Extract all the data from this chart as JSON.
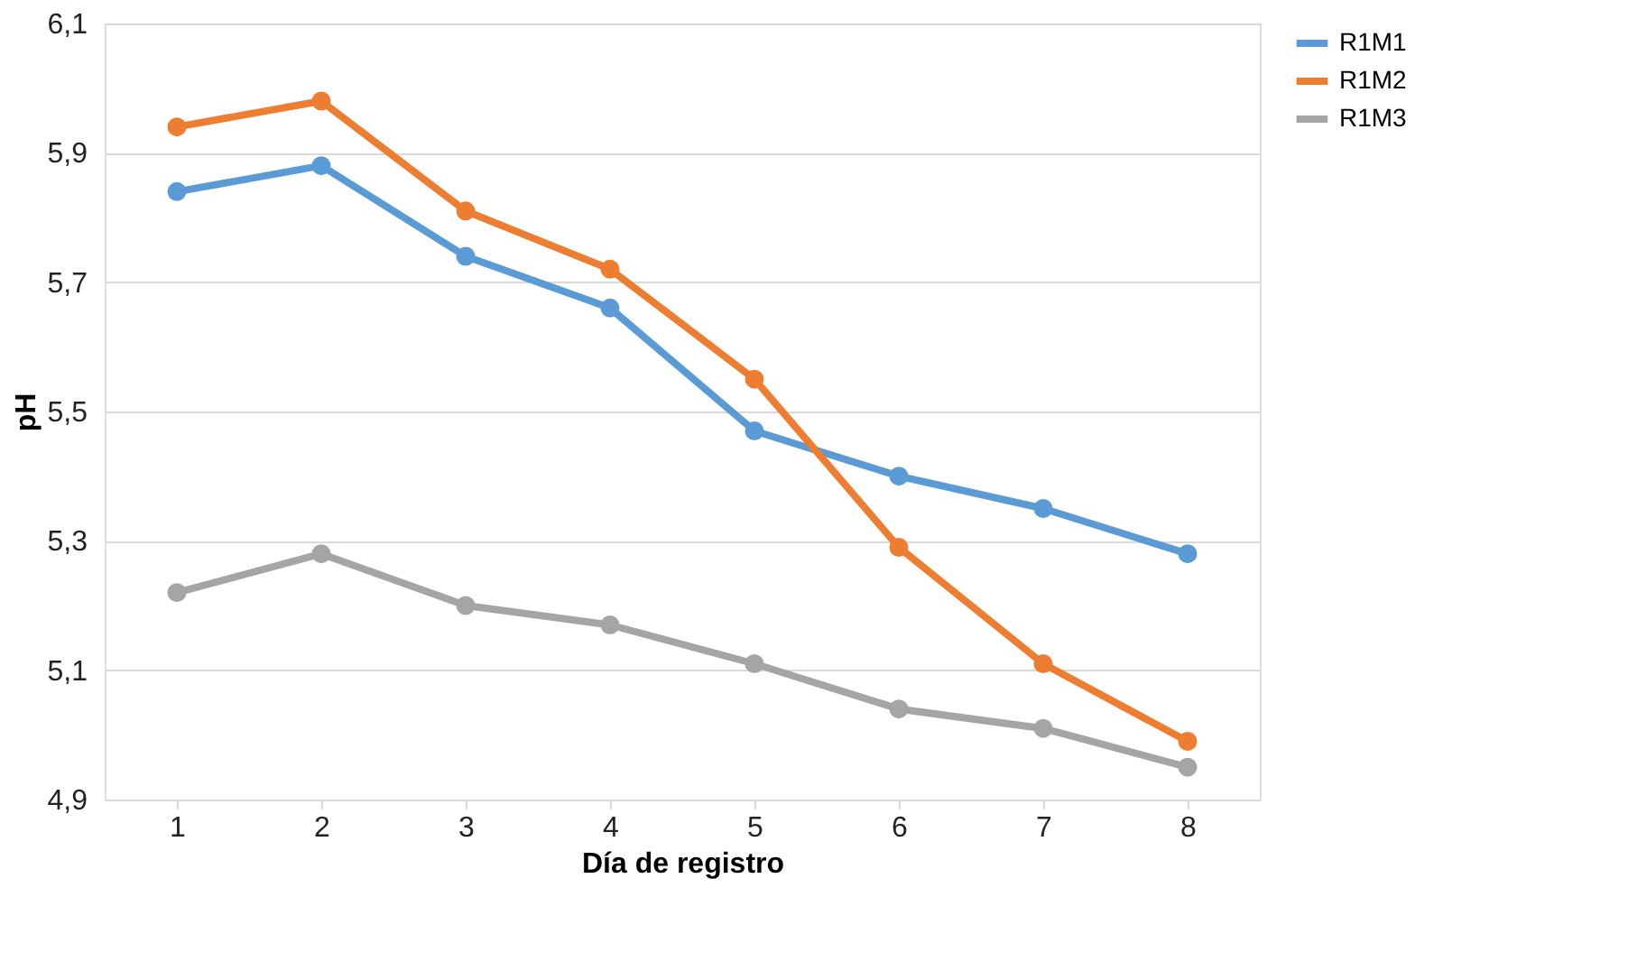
{
  "chart_data": {
    "type": "line",
    "xlabel": "Día de registro",
    "ylabel": "pH",
    "categories": [
      "1",
      "2",
      "3",
      "4",
      "5",
      "6",
      "7",
      "8"
    ],
    "series": [
      {
        "name": "R1M1",
        "color": "#5b9bd5",
        "values": [
          5.84,
          5.88,
          5.74,
          5.66,
          5.47,
          5.4,
          5.35,
          5.28
        ]
      },
      {
        "name": "R1M2",
        "color": "#ed7d31",
        "values": [
          5.94,
          5.98,
          5.81,
          5.72,
          5.55,
          5.29,
          5.11,
          4.99
        ]
      },
      {
        "name": "R1M3",
        "color": "#a5a5a5",
        "values": [
          5.22,
          5.28,
          5.2,
          5.17,
          5.11,
          5.04,
          5.01,
          4.95
        ]
      }
    ],
    "ylim": [
      4.9,
      6.1
    ],
    "yticks": [
      {
        "value": 4.9,
        "label": "4,9"
      },
      {
        "value": 5.1,
        "label": "5,1"
      },
      {
        "value": 5.3,
        "label": "5,3"
      },
      {
        "value": 5.5,
        "label": "5,5"
      },
      {
        "value": 5.7,
        "label": "5,7"
      },
      {
        "value": 5.9,
        "label": "5,9"
      },
      {
        "value": 6.1,
        "label": "6,1"
      }
    ],
    "grid": "y",
    "legend": "right",
    "marker": "circle",
    "line_style": "solid"
  }
}
